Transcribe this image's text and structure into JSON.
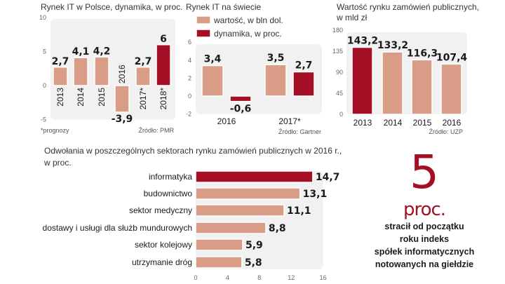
{
  "colors": {
    "light": "#d99c86",
    "dark": "#a50f25",
    "plot_bg": "#f1f1f1"
  },
  "chart_data": [
    {
      "type": "bar",
      "title": "Rynek IT w Polsce, dynamika, w proc.",
      "categories": [
        "2013",
        "2014",
        "2015",
        "2016",
        "2017*",
        "2018*"
      ],
      "values": [
        2.7,
        4.1,
        4.2,
        -3.9,
        2.7,
        6
      ],
      "value_labels": [
        "2,7",
        "4,1",
        "4,2",
        "-3,9",
        "2,7",
        "6"
      ],
      "highlight": [
        false,
        false,
        false,
        false,
        false,
        true
      ],
      "ylim": [
        -5,
        10
      ],
      "yticks": [
        "-5",
        "0",
        "5",
        "10"
      ],
      "ytick_values": [
        -5,
        0,
        5,
        10
      ],
      "footnote": "*prognozy",
      "source": "Źródło: PMR"
    },
    {
      "type": "bar",
      "title": "Rynek IT na  świecie",
      "categories": [
        "2016",
        "2017*"
      ],
      "series": [
        {
          "name": "wartość, w bln dol.",
          "values": [
            3.4,
            3.5
          ],
          "value_labels": [
            "3,4",
            "3,5"
          ]
        },
        {
          "name": "dynamika, w proc.",
          "values": [
            -0.6,
            2.7
          ],
          "value_labels": [
            "-0,6",
            "2,7"
          ]
        }
      ],
      "ylim": [
        -2,
        6
      ],
      "yticks": [
        "-2",
        "0",
        "2",
        "4",
        "6"
      ],
      "ytick_values": [
        -2,
        0,
        2,
        4,
        6
      ],
      "source": "Źródło: Gartner"
    },
    {
      "type": "bar",
      "title": [
        "Wartość rynku zamówień publicznych,",
        "w mld zł"
      ],
      "categories": [
        "2013",
        "2014",
        "2015",
        "2016"
      ],
      "values": [
        143.2,
        133.2,
        116.3,
        107.4
      ],
      "value_labels": [
        "143,2",
        "133,2",
        "116,3",
        "107,4"
      ],
      "highlight": [
        true,
        false,
        false,
        false
      ],
      "ylim": [
        0,
        180
      ],
      "yticks": [
        "0",
        "45",
        "90",
        "135",
        "180"
      ],
      "ytick_values": [
        0,
        45,
        90,
        135,
        180
      ],
      "source": "Źródło: UZP"
    },
    {
      "type": "bar",
      "orientation": "horizontal",
      "title": [
        "Odwołania w poszczególnych sektorach rynku zamówień publicznych w 2016 r.,",
        "w proc."
      ],
      "categories": [
        "informatyka",
        "budownictwo",
        "sektor medyczny",
        "dostawy i usługi dla służb mundurowych",
        "sektor kolejowy",
        "utrzymanie dróg"
      ],
      "values": [
        14.7,
        13.1,
        11.1,
        8.8,
        5.9,
        5.8
      ],
      "value_labels": [
        "14,7",
        "13,1",
        "11,1",
        "8,8",
        "5,9",
        "5,8"
      ],
      "highlight": [
        true,
        false,
        false,
        false,
        false,
        false
      ],
      "xlim": [
        0,
        16
      ],
      "xticks": [
        "0",
        "4",
        "8",
        "12",
        "16"
      ],
      "xtick_values": [
        0,
        4,
        8,
        12,
        16
      ]
    }
  ],
  "callout": {
    "number": "5",
    "unit": "proc.",
    "lines": [
      "stracił od początku",
      "roku indeks",
      "spółek informatycznych",
      "notowanych na giełdzie"
    ]
  }
}
